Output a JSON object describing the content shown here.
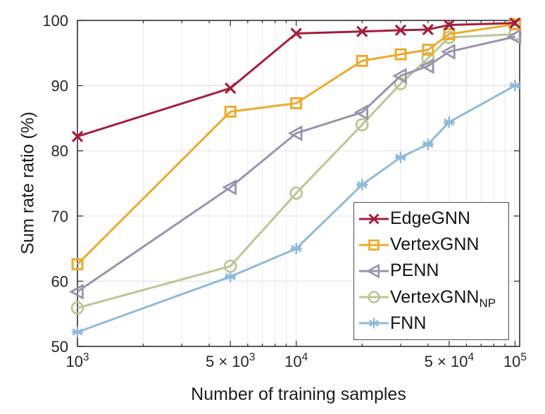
{
  "figure": {
    "background": "#ffffff",
    "frame_color": "#3c3c3c",
    "tick_color": "#3c3c3c",
    "grid_color_h": "#e3e3e7",
    "grid_color_v": "#eaeaee",
    "text_color": "#262626"
  },
  "chart_data": {
    "type": "line",
    "title": "",
    "xlabel": "Number of training samples",
    "ylabel": "Sum rate ratio (%)",
    "x_scale": "log",
    "xlim": [
      1000,
      105000
    ],
    "ylim": [
      50,
      100
    ],
    "grid": true,
    "legend_position": "inside lower right",
    "x": [
      1000,
      5000,
      10000,
      20000,
      30000,
      40000,
      50000,
      100000
    ],
    "x_major_ticks": [
      {
        "value": 1000,
        "label": "10^3"
      },
      {
        "value": 5000,
        "label": "5 × 10^3"
      },
      {
        "value": 10000,
        "label": "10^4"
      },
      {
        "value": 50000,
        "label": "5 × 10^4"
      },
      {
        "value": 100000,
        "label": "10^5"
      }
    ],
    "y_ticks": [
      50,
      60,
      70,
      80,
      90,
      100
    ],
    "series": [
      {
        "name": "EdgeGNN",
        "label": "EdgeGNN",
        "label_sub": "",
        "color": "#A41E3C",
        "marker": "x-cross",
        "values": [
          82.2,
          89.6,
          98.0,
          98.3,
          98.5,
          98.6,
          99.3,
          99.6
        ]
      },
      {
        "name": "VertexGNN",
        "label": "VertexGNN",
        "label_sub": "",
        "color": "#ECAB2D",
        "marker": "square",
        "values": [
          62.6,
          86.0,
          87.3,
          93.8,
          94.8,
          95.5,
          97.9,
          99.4
        ]
      },
      {
        "name": "PENN",
        "label": "PENN",
        "label_sub": "",
        "color": "#9A93AC",
        "marker": "triangle-left",
        "values": [
          58.4,
          74.4,
          82.7,
          85.9,
          91.5,
          93.0,
          95.2,
          97.5
        ]
      },
      {
        "name": "VertexGNN_NP",
        "label": "VertexGNN",
        "label_sub": "NP",
        "color": "#B9C795",
        "marker": "circle",
        "values": [
          55.9,
          62.3,
          73.5,
          84.0,
          90.3,
          94.2,
          97.4,
          97.9
        ]
      },
      {
        "name": "FNN",
        "label": "FNN",
        "label_sub": "",
        "color": "#90BAD8",
        "marker": "asterisk",
        "values": [
          52.2,
          60.7,
          65.0,
          74.8,
          79.0,
          81.0,
          84.4,
          90.0
        ]
      }
    ]
  }
}
